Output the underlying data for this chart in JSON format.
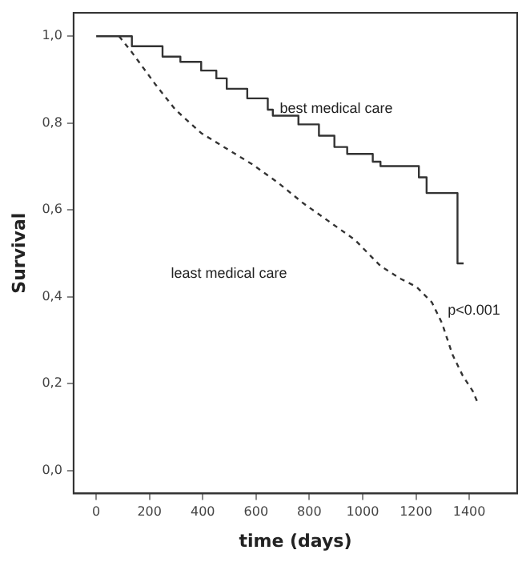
{
  "chart_data": {
    "type": "line",
    "xlabel": "time (days)",
    "ylabel": "Survival",
    "xlim": [
      -85,
      1580
    ],
    "ylim": [
      -0.053,
      1.054
    ],
    "xticks": [
      0,
      200,
      400,
      600,
      800,
      1000,
      1200,
      1400
    ],
    "yticks": [
      {
        "value": 0,
        "label": "0,0"
      },
      {
        "value": 0.2,
        "label": "0,2"
      },
      {
        "value": 0.4,
        "label": "0,4"
      },
      {
        "value": 0.6,
        "label": "0,6"
      },
      {
        "value": 0.8,
        "label": "0,8"
      },
      {
        "value": 1,
        "label": "1,0"
      }
    ],
    "grid": false,
    "legend": false,
    "marker": "none",
    "series": [
      {
        "type": "step",
        "line_style": "solid",
        "color": "#333333",
        "x": [
          0,
          86,
          134,
          249,
          316,
          394,
          451,
          490,
          567,
          644,
          663,
          721,
          759,
          836,
          894,
          942,
          1029,
          1038,
          1067,
          1211,
          1240,
          1356,
          1379
        ],
        "values": [
          1.0,
          1.0,
          0.977,
          0.953,
          0.941,
          0.921,
          0.903,
          0.879,
          0.857,
          0.831,
          0.817,
          0.817,
          0.797,
          0.771,
          0.745,
          0.729,
          0.729,
          0.711,
          0.701,
          0.675,
          0.639,
          0.477,
          0.477
        ]
      },
      {
        "type": "line",
        "line_style": "dashed",
        "color": "#333333",
        "x": [
          86,
          134,
          220,
          297,
          394,
          490,
          586,
          682,
          778,
          875,
          971,
          1067,
          1144,
          1202,
          1260,
          1298,
          1337,
          1375,
          1413,
          1433
        ],
        "values": [
          1.0,
          0.963,
          0.891,
          0.831,
          0.777,
          0.741,
          0.705,
          0.663,
          0.615,
          0.573,
          0.531,
          0.471,
          0.441,
          0.423,
          0.387,
          0.339,
          0.267,
          0.219,
          0.183,
          0.154
        ]
      }
    ],
    "annotations": [
      "best medical care",
      "least medical care",
      "p<0.001"
    ]
  }
}
